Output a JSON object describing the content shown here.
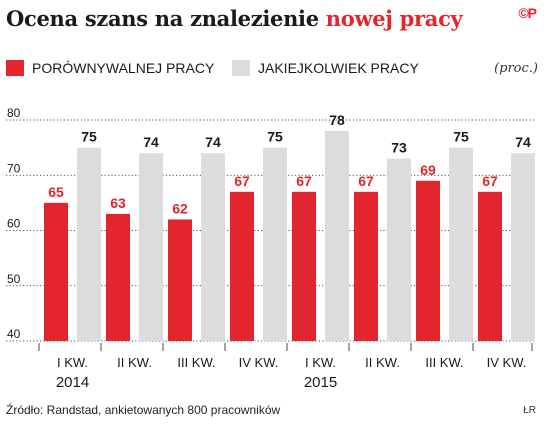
{
  "header": {
    "title_main": "Ocena szans na znalezienie",
    "title_highlight": "nowej pracy",
    "logo": "©P",
    "unit": "(proc.)"
  },
  "colors": {
    "series1": "#e3262d",
    "series2": "#dcdcdc",
    "text": "#1a1a1a",
    "axis": "#1a1a1a"
  },
  "chart_data": {
    "type": "bar",
    "title": "Ocena szans na znalezienie nowej pracy",
    "unit": "(proc.)",
    "categories": [
      [
        "I KW.",
        "2014"
      ],
      [
        "II KW.",
        ""
      ],
      [
        "III KW.",
        ""
      ],
      [
        "IV KW.",
        ""
      ],
      [
        "I KW.",
        "2015"
      ],
      [
        "II KW.",
        ""
      ],
      [
        "III KW.",
        ""
      ],
      [
        "IV KW.",
        ""
      ]
    ],
    "series": [
      {
        "name": "PORÓWNYWALNEJ PRACY",
        "values": [
          65,
          63,
          62,
          67,
          67,
          67,
          69,
          67
        ]
      },
      {
        "name": "JAKIEJKOLWIEK PRACY",
        "values": [
          75,
          74,
          74,
          75,
          78,
          73,
          75,
          74
        ]
      }
    ],
    "ylim": [
      40,
      80
    ],
    "yticks": [
      40,
      50,
      60,
      70,
      80
    ],
    "grid": true,
    "legend": "top-left"
  },
  "footer": {
    "source": "Źródło: Randstad, ankietowanych 800 pracowników",
    "author": "ŁR"
  }
}
